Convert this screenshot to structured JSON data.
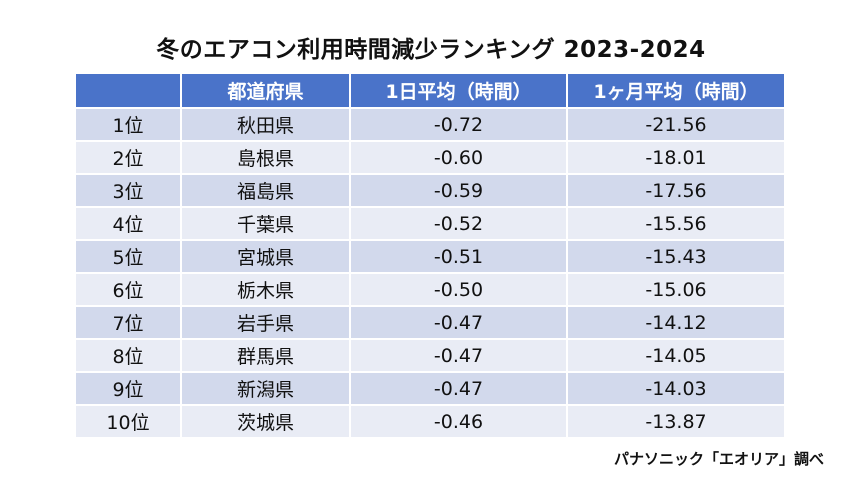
{
  "chart_data": {
    "type": "table",
    "title": "冬のエアコン利用時間減少ランキング 2023-2024",
    "columns": [
      "",
      "都道府県",
      "1日平均（時間）",
      "1ヶ月平均（時間）"
    ],
    "rows": [
      {
        "rank": "1位",
        "prefecture": "秋田県",
        "daily": "-0.72",
        "monthly": "-21.56"
      },
      {
        "rank": "2位",
        "prefecture": "島根県",
        "daily": "-0.60",
        "monthly": "-18.01"
      },
      {
        "rank": "3位",
        "prefecture": "福島県",
        "daily": "-0.59",
        "monthly": "-17.56"
      },
      {
        "rank": "4位",
        "prefecture": "千葉県",
        "daily": "-0.52",
        "monthly": "-15.56"
      },
      {
        "rank": "5位",
        "prefecture": "宮城県",
        "daily": "-0.51",
        "monthly": "-15.43"
      },
      {
        "rank": "6位",
        "prefecture": "栃木県",
        "daily": "-0.50",
        "monthly": "-15.06"
      },
      {
        "rank": "7位",
        "prefecture": "岩手県",
        "daily": "-0.47",
        "monthly": "-14.12"
      },
      {
        "rank": "8位",
        "prefecture": "群馬県",
        "daily": "-0.47",
        "monthly": "-14.05"
      },
      {
        "rank": "9位",
        "prefecture": "新潟県",
        "daily": "-0.47",
        "monthly": "-14.03"
      },
      {
        "rank": "10位",
        "prefecture": "茨城県",
        "daily": "-0.46",
        "monthly": "-13.87"
      }
    ],
    "source": "パナソニック「エオリア」調べ"
  },
  "colors": {
    "header_bg": "#4a73c9",
    "row_odd": "#d2d9ec",
    "row_even": "#e9ecf5"
  }
}
